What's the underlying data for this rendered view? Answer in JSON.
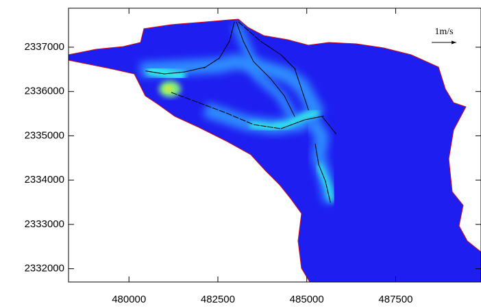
{
  "chart_data": {
    "type": "vector_field",
    "vector_scale_label": "1m/s",
    "xlim": [
      478300,
      489900
    ],
    "ylim": [
      2331700,
      2337880
    ],
    "xticks": [
      480000,
      482500,
      485000,
      487500
    ],
    "yticks": [
      2332000,
      2333000,
      2334000,
      2335000,
      2336000,
      2337000
    ]
  }
}
